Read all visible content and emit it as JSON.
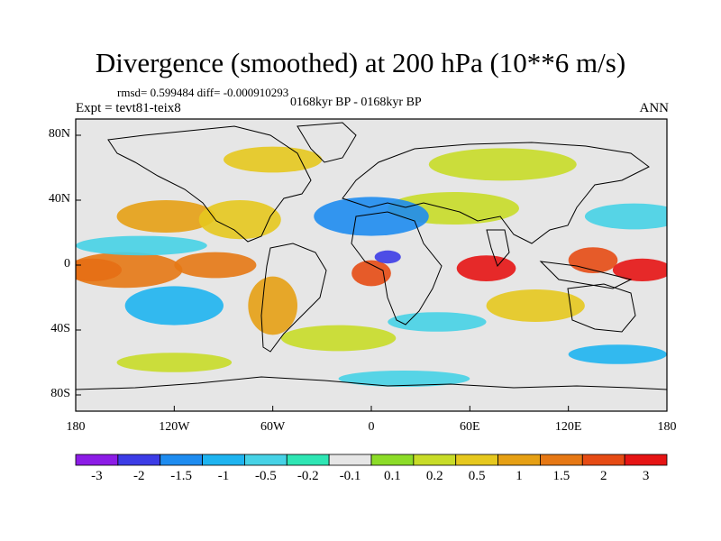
{
  "title": "Divergence (smoothed) at 200 hPa (10**6 m/s)",
  "stats": "rmsd= 0.599484 diff= -0.000910293",
  "experiment": "Expt = tevt81-teix8",
  "period": "0168kyr BP - 0168kyr BP",
  "season": "ANN",
  "colors": {
    "land_outline": "#000000",
    "ocean_neutral": "#e6e6e6",
    "levels": [
      "#8c1ce6",
      "#3c3ce6",
      "#1e8cf0",
      "#1eb4f0",
      "#46d2e6",
      "#2ee6b4",
      "#e6e6e6",
      "#8cdc28",
      "#c8dc28",
      "#e6c81e",
      "#e6a014",
      "#e67814",
      "#e64b14",
      "#e61414"
    ]
  },
  "y_axis": {
    "ticks": [
      "80N",
      "40N",
      "0",
      "40S",
      "80S"
    ],
    "values": [
      80,
      40,
      0,
      -40,
      -80
    ]
  },
  "x_axis": {
    "ticks": [
      "180",
      "120W",
      "60W",
      "0",
      "60E",
      "120E",
      "180"
    ],
    "values": [
      -180,
      -120,
      -60,
      0,
      60,
      120,
      180
    ]
  },
  "colorbar": {
    "labels": [
      "-3",
      "-2",
      "-1.5",
      "-1",
      "-0.5",
      "-0.2",
      "-0.1",
      "0.1",
      "0.2",
      "0.5",
      "1",
      "1.5",
      "2",
      "3"
    ],
    "bins": 14
  },
  "field_blobs": [
    {
      "lon": -170,
      "lat": -3,
      "rx": 18,
      "ry": 7,
      "level": 13
    },
    {
      "lon": -150,
      "lat": -3,
      "rx": 35,
      "ry": 11,
      "level": 11
    },
    {
      "lon": -140,
      "lat": 12,
      "rx": 40,
      "ry": 6,
      "level": 4
    },
    {
      "lon": -125,
      "lat": 30,
      "rx": 30,
      "ry": 10,
      "level": 10
    },
    {
      "lon": -80,
      "lat": 28,
      "rx": 25,
      "ry": 12,
      "level": 9
    },
    {
      "lon": -95,
      "lat": 0,
      "rx": 25,
      "ry": 8,
      "level": 11
    },
    {
      "lon": -60,
      "lat": -25,
      "rx": 15,
      "ry": 18,
      "level": 10
    },
    {
      "lon": -120,
      "lat": -25,
      "rx": 30,
      "ry": 12,
      "level": 3
    },
    {
      "lon": 0,
      "lat": -5,
      "rx": 12,
      "ry": 8,
      "level": 12
    },
    {
      "lon": 10,
      "lat": 5,
      "rx": 8,
      "ry": 4,
      "level": 1
    },
    {
      "lon": 70,
      "lat": -2,
      "rx": 18,
      "ry": 8,
      "level": 13
    },
    {
      "lon": 135,
      "lat": 3,
      "rx": 15,
      "ry": 8,
      "level": 12
    },
    {
      "lon": 165,
      "lat": -3,
      "rx": 18,
      "ry": 7,
      "level": 13
    },
    {
      "lon": 50,
      "lat": 35,
      "rx": 40,
      "ry": 10,
      "level": 8
    },
    {
      "lon": 0,
      "lat": 30,
      "rx": 35,
      "ry": 12,
      "level": 2
    },
    {
      "lon": 40,
      "lat": -35,
      "rx": 30,
      "ry": 6,
      "level": 4
    },
    {
      "lon": 100,
      "lat": -25,
      "rx": 30,
      "ry": 10,
      "level": 9
    },
    {
      "lon": -20,
      "lat": -45,
      "rx": 35,
      "ry": 8,
      "level": 8
    },
    {
      "lon": 160,
      "lat": 30,
      "rx": 30,
      "ry": 8,
      "level": 4
    },
    {
      "lon": 80,
      "lat": 62,
      "rx": 45,
      "ry": 10,
      "level": 8
    },
    {
      "lon": -60,
      "lat": 65,
      "rx": 30,
      "ry": 8,
      "level": 9
    },
    {
      "lon": -120,
      "lat": -60,
      "rx": 35,
      "ry": 6,
      "level": 8
    },
    {
      "lon": 20,
      "lat": -70,
      "rx": 40,
      "ry": 5,
      "level": 4
    },
    {
      "lon": 150,
      "lat": -55,
      "rx": 30,
      "ry": 6,
      "level": 3
    }
  ]
}
